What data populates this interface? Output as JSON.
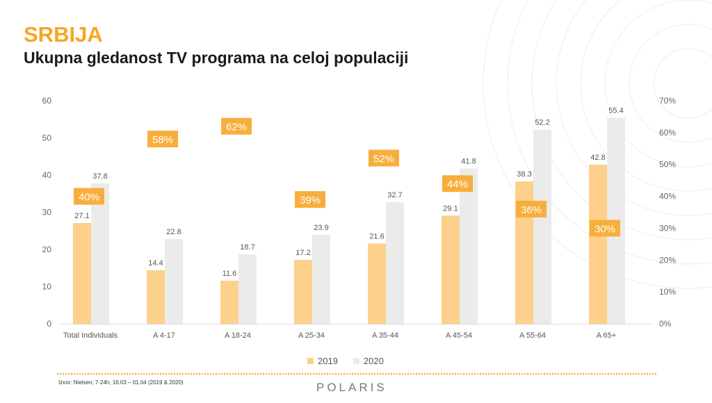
{
  "header": {
    "title": "SRBIJA",
    "subtitle": "Ukupna gledanost TV programa na celoj populaciji"
  },
  "colors": {
    "accent": "#f6a623",
    "series_2019": "#fdd08c",
    "series_2020": "#ebebeb",
    "badge": "#f7ae3c"
  },
  "chart_data": {
    "type": "bar",
    "categories": [
      "Total Individuals",
      "A 4-17",
      "A 18-24",
      "A 25-34",
      "A 35-44",
      "A 45-54",
      "A 55-64",
      "A 65+"
    ],
    "series": [
      {
        "name": "2019",
        "values": [
          27.1,
          14.4,
          11.6,
          17.2,
          21.6,
          29.1,
          38.3,
          42.8
        ],
        "labels": [
          "27.1",
          "14.4",
          "11.6",
          "17.2",
          "21.6",
          "29.1",
          "38.3",
          "42.8"
        ]
      },
      {
        "name": "2020",
        "values": [
          37.8,
          22.8,
          18.7,
          23.9,
          32.7,
          41.8,
          52.2,
          55.4
        ],
        "labels": [
          "37.8",
          "22.8",
          "18.7",
          "23.9",
          "32.7",
          "41.8",
          "52.2",
          "55.4"
        ]
      }
    ],
    "growth": {
      "labels": [
        "40%",
        "58%",
        "62%",
        "39%",
        "52%",
        "44%",
        "36%",
        "30%"
      ],
      "values": [
        40,
        58,
        62,
        39,
        52,
        44,
        36,
        30
      ]
    },
    "ylim": [
      0,
      60
    ],
    "yticks": [
      "0",
      "10",
      "20",
      "30",
      "40",
      "50",
      "60"
    ],
    "y2lim": [
      0,
      70
    ],
    "y2ticks": [
      "0%",
      "10%",
      "20%",
      "30%",
      "40%",
      "50%",
      "60%",
      "70%"
    ],
    "grid": false,
    "legend": "bottom-center"
  },
  "footer": {
    "source": "Izvor: Nielsen; 7-24h; 16.03 – 01.04 (2019 & 2020)",
    "logo": "POLARIS"
  }
}
